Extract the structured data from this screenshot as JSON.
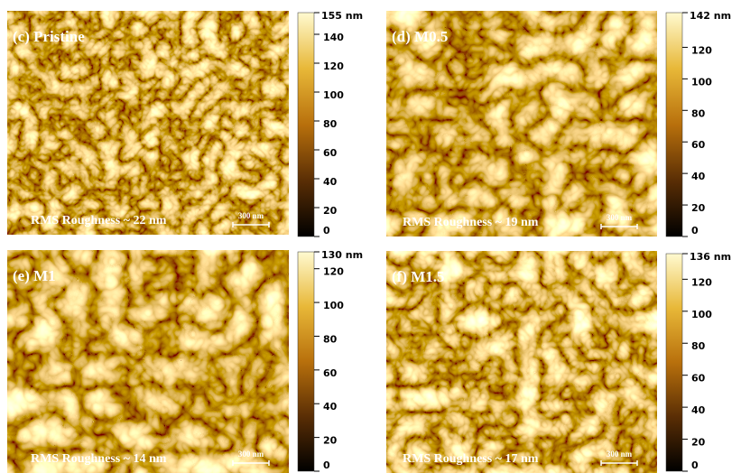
{
  "panels": [
    {
      "label": "(c) Pristine",
      "roughness": "RMS Roughness ~ 22 nm",
      "scale_bar": "300 nm",
      "colorbar": {
        "max": {
          "value": 155,
          "label": "155 nm"
        },
        "ticks": [
          0,
          20,
          40,
          60,
          80,
          100,
          120,
          140
        ]
      }
    },
    {
      "label": "(d) M0.5",
      "roughness": "RMS Roughness ~ 19 nm",
      "scale_bar": "300 nm",
      "colorbar": {
        "max": {
          "value": 142,
          "label": "142 nm"
        },
        "ticks": [
          0,
          20,
          40,
          60,
          80,
          100,
          120
        ]
      }
    },
    {
      "label": "(e) M1",
      "roughness": "RMS Roughness ~ 14 nm",
      "scale_bar": "300 nm",
      "colorbar": {
        "max": {
          "value": 130,
          "label": "130 nm"
        },
        "ticks": [
          0,
          20,
          40,
          60,
          80,
          100,
          120
        ]
      }
    },
    {
      "label": "(f) M1.5",
      "roughness": "RMS Roughness ~ 17 nm",
      "scale_bar": "300 nm",
      "colorbar": {
        "max": {
          "value": 136,
          "label": "136 nm"
        },
        "ticks": [
          0,
          20,
          40,
          60,
          80,
          100,
          120
        ]
      }
    }
  ]
}
